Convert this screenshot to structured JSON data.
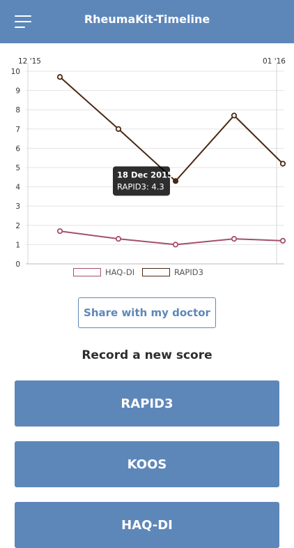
{
  "header": {
    "title": "RheumaKit-Timeline",
    "menu_icon": "hamburger-menu-icon"
  },
  "chart_data": {
    "type": "line",
    "x_tick_labels": [
      "12 '15",
      "01 '16"
    ],
    "y_ticks": [
      "0",
      "1",
      "2",
      "3",
      "4",
      "5",
      "6",
      "7",
      "8",
      "9",
      "10"
    ],
    "ylim": [
      0,
      10
    ],
    "grid": true,
    "legend_position": "bottom",
    "series": [
      {
        "name": "HAQ-DI",
        "color": "#a4506a",
        "values": [
          1.7,
          1.3,
          1.0,
          1.3,
          1.2
        ]
      },
      {
        "name": "RAPID3",
        "color": "#4a2713",
        "values": [
          9.7,
          7.0,
          4.3,
          7.7,
          5.2
        ]
      }
    ],
    "tooltip": {
      "title": "18 Dec 2015",
      "body": "RAPID3: 4.3",
      "series_index": 1,
      "point_index": 2
    }
  },
  "share": {
    "label": "Share with my doctor"
  },
  "record": {
    "title": "Record a new score",
    "buttons": [
      "RAPID3",
      "KOOS",
      "HAQ-DI"
    ]
  }
}
